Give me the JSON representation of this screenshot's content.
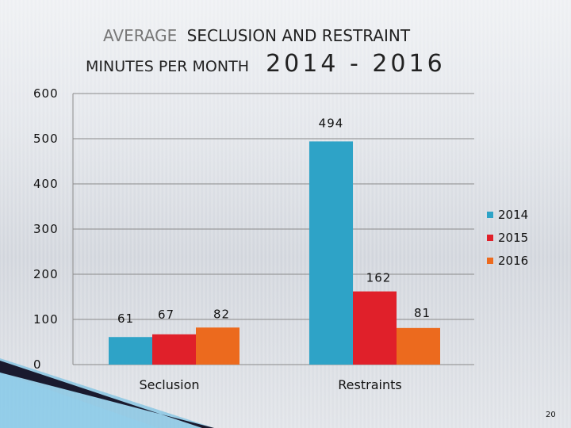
{
  "slide": {
    "title_line1_a": "AVERAGE",
    "title_line1_b": "SECLUSION AND  RESTRAINT",
    "title_line2_a": "MINUTES  PER MONTH",
    "title_line2_b": "2014 - 2016",
    "page_number": "20"
  },
  "chart_data": {
    "type": "bar",
    "categories": [
      "Seclusion",
      "Restraints"
    ],
    "series": [
      {
        "name": "2014",
        "values": [
          61,
          494
        ],
        "color": "#2ea3c7"
      },
      {
        "name": "2015",
        "values": [
          67,
          162
        ],
        "color": "#e0202a"
      },
      {
        "name": "2016",
        "values": [
          82,
          81
        ],
        "color": "#ec6a1e"
      }
    ],
    "data_labels": [
      [
        "61",
        "494"
      ],
      [
        "67",
        "162"
      ],
      [
        "82",
        "81"
      ]
    ],
    "ylim": [
      0,
      600
    ],
    "yticks": [
      0,
      100,
      200,
      300,
      400,
      500,
      600
    ],
    "grid": true,
    "legend_position": "right"
  }
}
